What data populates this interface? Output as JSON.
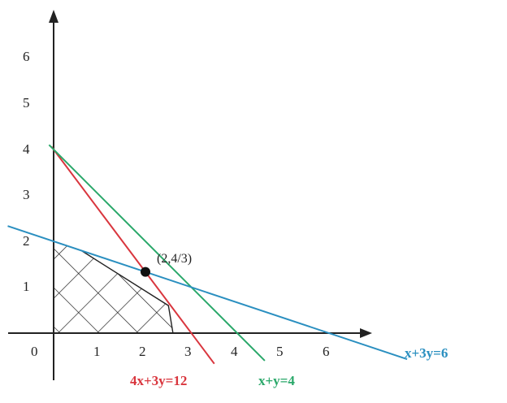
{
  "axes": {
    "origin_label": "0",
    "x_ticks": [
      "1",
      "2",
      "3",
      "4",
      "5",
      "6"
    ],
    "y_ticks": [
      "1",
      "2",
      "3",
      "4",
      "5",
      "6"
    ]
  },
  "lines": [
    {
      "name": "line-4x-3y-12",
      "label": "4x+3y=12",
      "color": "#d9363e",
      "equation": {
        "a": 4,
        "b": 3,
        "c": 12
      }
    },
    {
      "name": "line-x-y-4",
      "label": "x+y=4",
      "color": "#2aa86a",
      "equation": {
        "a": 1,
        "b": 1,
        "c": 4
      }
    },
    {
      "name": "line-x-3y-6",
      "label": "x+3y=6",
      "color": "#2a8fc0",
      "equation": {
        "a": 1,
        "b": 3,
        "c": 6
      }
    }
  ],
  "point": {
    "label": "(2,4/3)",
    "x": 2,
    "y": 1.3333
  },
  "feasible_region": {
    "vertices": [
      [
        0,
        0
      ],
      [
        0,
        2
      ],
      [
        0.6,
        1.8
      ],
      [
        2.5,
        0.6
      ],
      [
        2.6,
        0
      ]
    ],
    "fill": "crosshatch"
  }
}
